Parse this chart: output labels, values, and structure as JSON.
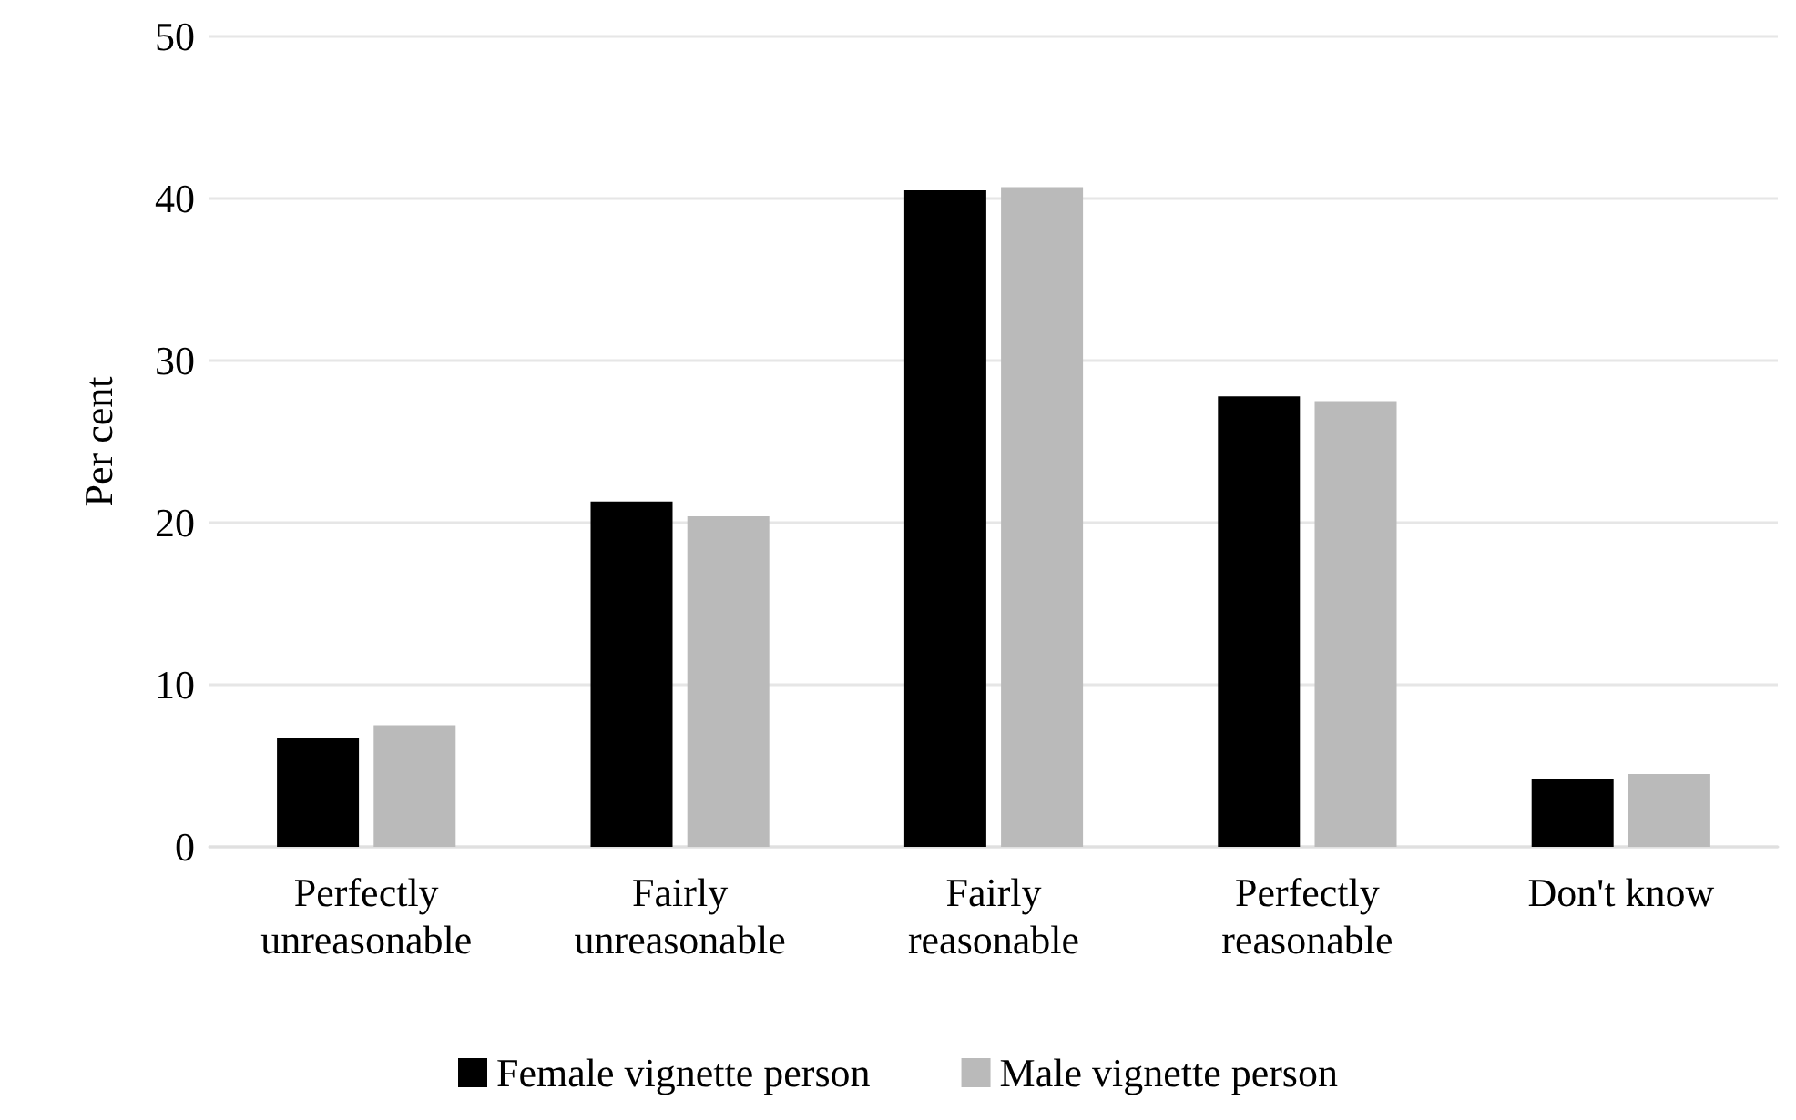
{
  "chart_data": {
    "type": "bar",
    "ylabel": "Per cent",
    "categories": [
      "Perfectly\nunreasonable",
      "Fairly\nunreasonable",
      "Fairly\nreasonable",
      "Perfectly\nreasonable",
      "Don't know"
    ],
    "series": [
      {
        "name": "Female vignette person",
        "color": "#000000",
        "values": [
          6.7,
          21.3,
          40.5,
          27.8,
          4.2
        ]
      },
      {
        "name": "Male vignette person",
        "color": "#bababa",
        "values": [
          7.5,
          20.4,
          40.7,
          27.5,
          4.5
        ]
      }
    ],
    "ylim": [
      0,
      50
    ],
    "yticks": [
      0,
      10,
      20,
      30,
      40,
      50
    ],
    "grid": "y",
    "legend": "bottom"
  }
}
